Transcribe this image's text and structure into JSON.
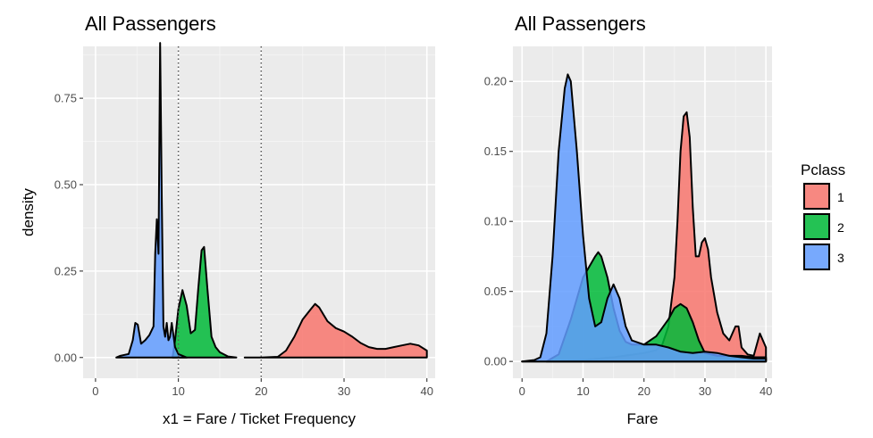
{
  "legend": {
    "title": "Pclass",
    "items": [
      {
        "label": "1",
        "color": "#F8766D"
      },
      {
        "label": "2",
        "color": "#00BA38"
      },
      {
        "label": "3",
        "color": "#619CFF"
      }
    ],
    "position": "right"
  },
  "chart_data": [
    {
      "type": "area",
      "title": "All Passengers",
      "xlabel": "x1 = Fare / Ticket Frequency",
      "ylabel": "density",
      "xlim": [
        -1.5,
        41
      ],
      "ylim": [
        -0.06,
        0.9
      ],
      "xticks": [
        0,
        10,
        20,
        30,
        40
      ],
      "xtick_labels": [
        "0",
        "10",
        "20",
        "30",
        "40"
      ],
      "yticks": [
        0.0,
        0.25,
        0.5,
        0.75
      ],
      "ytick_labels": [
        "0.00",
        "0.25",
        "0.50",
        "0.75"
      ],
      "grid": true,
      "vlines": [
        {
          "x": 10,
          "style": "dotted"
        },
        {
          "x": 20,
          "style": "dotted"
        }
      ],
      "series": [
        {
          "name": "1",
          "color": "#F8766D",
          "points": [
            [
              18,
              0
            ],
            [
              20,
              0
            ],
            [
              22,
              0.002
            ],
            [
              23,
              0.02
            ],
            [
              24,
              0.06
            ],
            [
              25,
              0.11
            ],
            [
              26,
              0.14
            ],
            [
              26.5,
              0.155
            ],
            [
              27,
              0.145
            ],
            [
              28,
              0.105
            ],
            [
              29,
              0.085
            ],
            [
              30,
              0.075
            ],
            [
              31,
              0.06
            ],
            [
              32,
              0.042
            ],
            [
              33,
              0.03
            ],
            [
              34,
              0.025
            ],
            [
              35,
              0.025
            ],
            [
              36,
              0.03
            ],
            [
              37,
              0.035
            ],
            [
              38,
              0.04
            ],
            [
              39,
              0.035
            ],
            [
              40,
              0.02
            ]
          ]
        },
        {
          "name": "2",
          "color": "#00BA38",
          "points": [
            [
              9.3,
              0
            ],
            [
              9.6,
              0.05
            ],
            [
              10,
              0.14
            ],
            [
              10.5,
              0.195
            ],
            [
              11,
              0.15
            ],
            [
              11.5,
              0.07
            ],
            [
              12,
              0.08
            ],
            [
              12.4,
              0.2
            ],
            [
              12.8,
              0.31
            ],
            [
              13.1,
              0.32
            ],
            [
              13.5,
              0.2
            ],
            [
              14,
              0.06
            ],
            [
              14.5,
              0.03
            ],
            [
              15,
              0.015
            ],
            [
              16,
              0.003
            ],
            [
              17,
              0
            ]
          ]
        },
        {
          "name": "3",
          "color": "#619CFF",
          "points": [
            [
              2.5,
              0
            ],
            [
              3,
              0.005
            ],
            [
              4,
              0.01
            ],
            [
              4.5,
              0.05
            ],
            [
              4.8,
              0.1
            ],
            [
              5.1,
              0.095
            ],
            [
              5.5,
              0.04
            ],
            [
              6,
              0.05
            ],
            [
              6.5,
              0.065
            ],
            [
              7,
              0.09
            ],
            [
              7.2,
              0.3
            ],
            [
              7.4,
              0.4
            ],
            [
              7.6,
              0.3
            ],
            [
              7.8,
              0.91
            ],
            [
              8.0,
              0.45
            ],
            [
              8.2,
              0.09
            ],
            [
              8.4,
              0.06
            ],
            [
              8.6,
              0.1
            ],
            [
              8.8,
              0.05
            ],
            [
              9,
              0.06
            ],
            [
              9.2,
              0.1
            ],
            [
              9.6,
              0.03
            ],
            [
              10,
              0.01
            ],
            [
              10.5,
              0.005
            ],
            [
              11,
              0
            ]
          ]
        }
      ]
    },
    {
      "type": "area",
      "title": "All Passengers",
      "xlabel": "Fare",
      "ylabel": "",
      "xlim": [
        -1.5,
        41
      ],
      "ylim": [
        -0.012,
        0.225
      ],
      "xticks": [
        0,
        10,
        20,
        30,
        40
      ],
      "xtick_labels": [
        "0",
        "10",
        "20",
        "30",
        "40"
      ],
      "yticks": [
        0.0,
        0.05,
        0.1,
        0.15,
        0.2
      ],
      "ytick_labels": [
        "0.00",
        "0.05",
        "0.10",
        "0.15",
        "0.20"
      ],
      "grid": true,
      "series": [
        {
          "name": "1",
          "color": "#F8766D",
          "points": [
            [
              0,
              0
            ],
            [
              5,
              0
            ],
            [
              10,
              0.001
            ],
            [
              15,
              0.003
            ],
            [
              20,
              0.006
            ],
            [
              22,
              0.008
            ],
            [
              23,
              0.012
            ],
            [
              24,
              0.025
            ],
            [
              25,
              0.06
            ],
            [
              25.5,
              0.1
            ],
            [
              26,
              0.15
            ],
            [
              26.5,
              0.175
            ],
            [
              27,
              0.178
            ],
            [
              27.5,
              0.16
            ],
            [
              28,
              0.11
            ],
            [
              28.5,
              0.075
            ],
            [
              29,
              0.075
            ],
            [
              29.5,
              0.085
            ],
            [
              30,
              0.088
            ],
            [
              30.5,
              0.08
            ],
            [
              31,
              0.06
            ],
            [
              32,
              0.035
            ],
            [
              33,
              0.02
            ],
            [
              34,
              0.015
            ],
            [
              35,
              0.025
            ],
            [
              35.5,
              0.025
            ],
            [
              36,
              0.01
            ],
            [
              37,
              0.005
            ],
            [
              38,
              0.004
            ],
            [
              39,
              0.02
            ],
            [
              40,
              0.01
            ]
          ]
        },
        {
          "name": "2",
          "color": "#00BA38",
          "points": [
            [
              4,
              0
            ],
            [
              6,
              0.005
            ],
            [
              8,
              0.03
            ],
            [
              10,
              0.06
            ],
            [
              12,
              0.075
            ],
            [
              12.5,
              0.078
            ],
            [
              13,
              0.075
            ],
            [
              14,
              0.06
            ],
            [
              15,
              0.038
            ],
            [
              16,
              0.022
            ],
            [
              17,
              0.014
            ],
            [
              18,
              0.012
            ],
            [
              20,
              0.012
            ],
            [
              22,
              0.018
            ],
            [
              24,
              0.03
            ],
            [
              25,
              0.038
            ],
            [
              26,
              0.041
            ],
            [
              27,
              0.038
            ],
            [
              28,
              0.028
            ],
            [
              29,
              0.015
            ],
            [
              30,
              0.006
            ],
            [
              32,
              0.004
            ],
            [
              34,
              0.004
            ],
            [
              36,
              0.004
            ],
            [
              38,
              0.003
            ],
            [
              40,
              0.003
            ]
          ]
        },
        {
          "name": "3",
          "color": "#619CFF",
          "points": [
            [
              0,
              0
            ],
            [
              2,
              0.001
            ],
            [
              3,
              0.003
            ],
            [
              4,
              0.02
            ],
            [
              5,
              0.075
            ],
            [
              6,
              0.15
            ],
            [
              7,
              0.195
            ],
            [
              7.5,
              0.205
            ],
            [
              8,
              0.2
            ],
            [
              9,
              0.15
            ],
            [
              10,
              0.09
            ],
            [
              11,
              0.045
            ],
            [
              12,
              0.025
            ],
            [
              13,
              0.028
            ],
            [
              14,
              0.045
            ],
            [
              15,
              0.055
            ],
            [
              16,
              0.045
            ],
            [
              17,
              0.025
            ],
            [
              18,
              0.015
            ],
            [
              20,
              0.012
            ],
            [
              22,
              0.012
            ],
            [
              24,
              0.01
            ],
            [
              26,
              0.007
            ],
            [
              28,
              0.006
            ],
            [
              30,
              0.007
            ],
            [
              32,
              0.006
            ],
            [
              34,
              0.004
            ],
            [
              36,
              0.003
            ],
            [
              38,
              0.002
            ],
            [
              40,
              0.002
            ]
          ]
        }
      ]
    }
  ]
}
